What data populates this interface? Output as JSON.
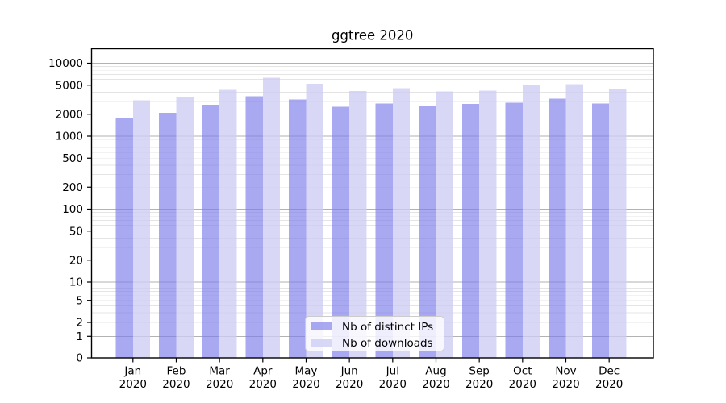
{
  "title": "ggtree 2020",
  "chart_data": {
    "type": "bar",
    "title": "ggtree 2020",
    "months": [
      "Jan",
      "Feb",
      "Mar",
      "Apr",
      "May",
      "Jun",
      "Jul",
      "Aug",
      "Sep",
      "Oct",
      "Nov",
      "Dec"
    ],
    "year": "2020",
    "series": [
      {
        "name": "Nb of distinct IPs",
        "values": [
          1740,
          2080,
          2700,
          3520,
          3200,
          2520,
          2790,
          2610,
          2750,
          2860,
          3280,
          2800
        ]
      },
      {
        "name": "Nb of downloads",
        "values": [
          3100,
          3480,
          4300,
          6300,
          5230,
          4160,
          4520,
          4120,
          4190,
          5090,
          5190,
          4490
        ]
      }
    ],
    "yticks": [
      0,
      1,
      2,
      5,
      10,
      20,
      50,
      100,
      200,
      500,
      1000,
      2000,
      5000,
      10000
    ],
    "yscale": "symlog",
    "ylim": [
      0,
      16000
    ],
    "xlabel": "",
    "ylabel": "",
    "grid": true,
    "legend_position": "lower center"
  },
  "legend": {
    "items": [
      {
        "label": "Nb of distinct IPs",
        "color": "rgba(124,124,235,0.66)"
      },
      {
        "label": "Nb of downloads",
        "color": "rgba(205,205,244,0.78)"
      }
    ]
  },
  "colors": {
    "series": [
      "rgba(124,124,235,0.66)",
      "rgba(205,205,244,0.78)"
    ],
    "grid_major": "#b2b2b2",
    "grid_minor": "#e4e4e4",
    "spine": "#000000",
    "tick": "#000000",
    "text": "#000000",
    "background": "#ffffff",
    "legend_bg": "rgba(255,255,255,0.8)",
    "legend_border": "#cccccc"
  }
}
